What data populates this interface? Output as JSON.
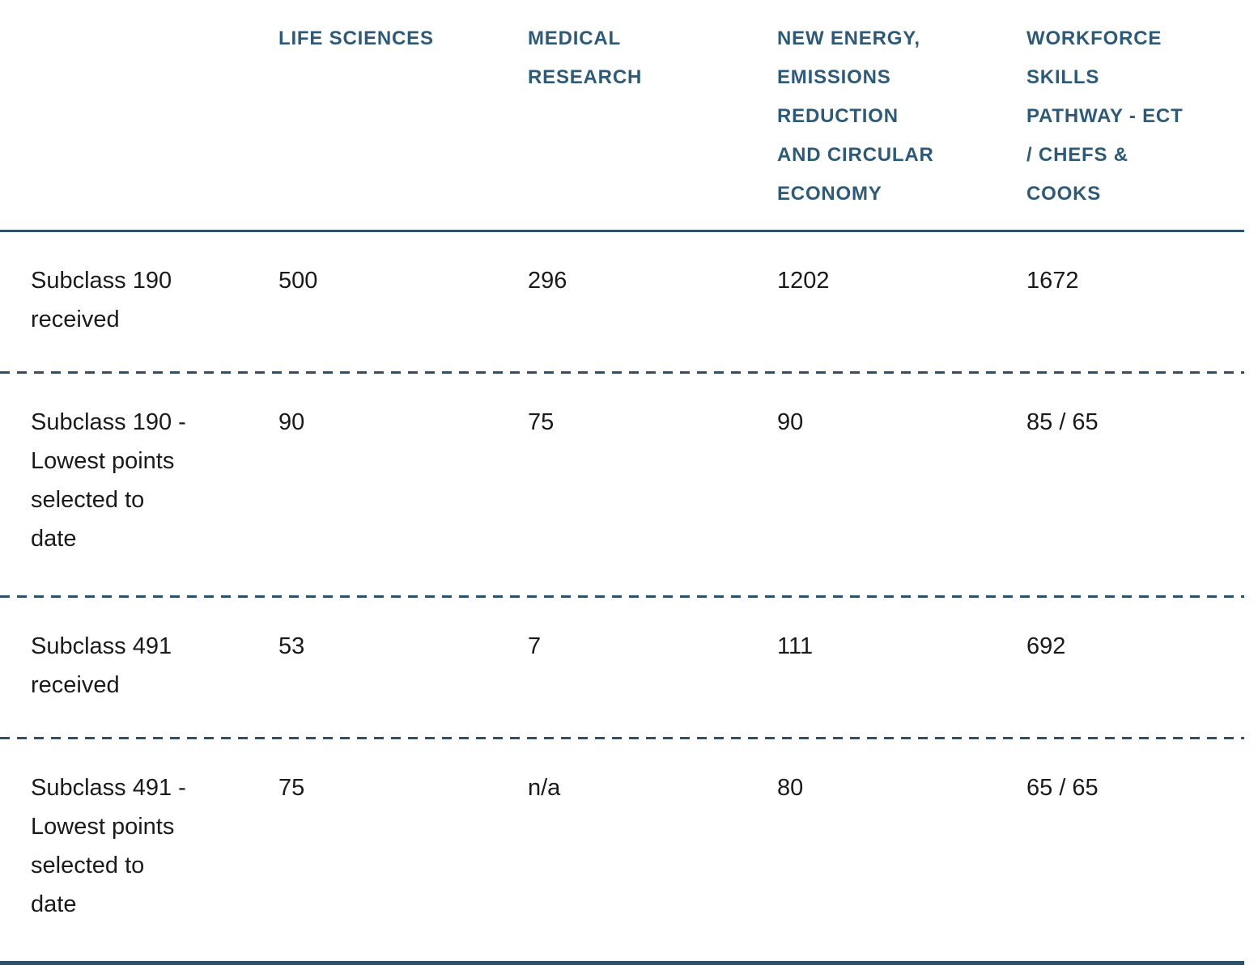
{
  "colors": {
    "header_text": "#2e5a77",
    "rule_line": "#2d506b",
    "body_text": "#1a1a1a",
    "background": "#ffffff"
  },
  "chart_data": {
    "type": "table",
    "title": "",
    "columns": [
      "LIFE SCIENCES",
      "MEDICAL RESEARCH",
      "NEW ENERGY, EMISSIONS REDUCTION AND CIRCULAR ECONOMY",
      "WORKFORCE SKILLS PATHWAY - ECT / CHEFS & COOKS"
    ],
    "rows": [
      {
        "label": "Subclass 190 received",
        "values": [
          "500",
          "296",
          "1202",
          "1672"
        ]
      },
      {
        "label": "Subclass 190 - Lowest points selected to date",
        "values": [
          "90",
          "75",
          "90",
          "85 / 65"
        ]
      },
      {
        "label": "Subclass 491 received",
        "values": [
          "53",
          "7",
          "111",
          "692"
        ]
      },
      {
        "label": "Subclass 491 - Lowest points selected to date",
        "values": [
          "75",
          "n/a",
          "80",
          "65 / 65"
        ]
      }
    ]
  }
}
